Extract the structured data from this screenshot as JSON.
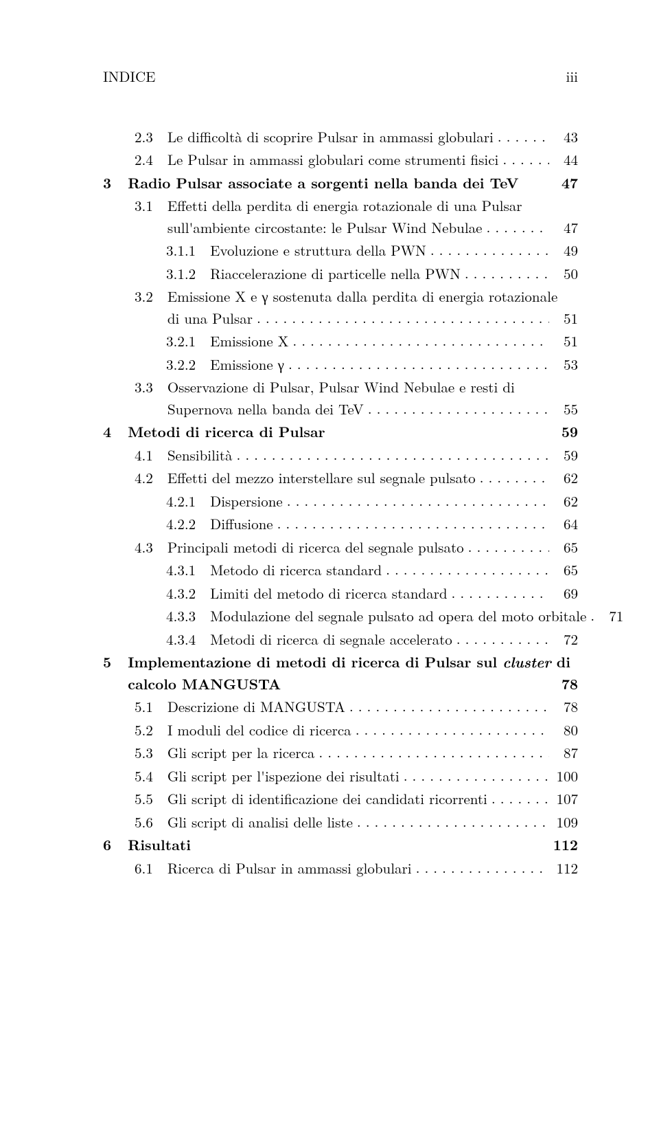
{
  "header": {
    "left": "INDICE",
    "right": "iii"
  },
  "entries": [
    {
      "level": 1,
      "num": "2.3",
      "title": "Le difficoltà di scoprire Pulsar in ammassi globulari",
      "page": "43"
    },
    {
      "level": 1,
      "num": "2.4",
      "title": "Le Pulsar in ammassi globulari come strumenti fisici",
      "page": "44"
    },
    {
      "level": 0,
      "num": "3",
      "title": "Radio Pulsar associate a sorgenti nella banda dei TeV",
      "page": "47",
      "gap": true
    },
    {
      "level": 1,
      "num": "3.1",
      "title": "Effetti della perdita di energia rotazionale di una Pulsar"
    },
    {
      "level": 1,
      "num": "3.1",
      "cont": true,
      "title": "sull'ambiente circostante: le Pulsar Wind Nebulae",
      "page": "47"
    },
    {
      "level": 2,
      "num": "3.1.1",
      "title": "Evoluzione e struttura della PWN",
      "page": "49"
    },
    {
      "level": 2,
      "num": "3.1.2",
      "title": "Riaccelerazione di particelle nella PWN",
      "page": "50"
    },
    {
      "level": 1,
      "num": "3.2",
      "title": "Emissione X e γ sostenuta dalla perdita di energia rotazionale"
    },
    {
      "level": 1,
      "num": "3.2",
      "cont": true,
      "title": "di una Pulsar",
      "page": "51"
    },
    {
      "level": 2,
      "num": "3.2.1",
      "title": "Emissione X",
      "page": "51"
    },
    {
      "level": 2,
      "num": "3.2.2",
      "title": "Emissione γ",
      "page": "53"
    },
    {
      "level": 1,
      "num": "3.3",
      "title": "Osservazione di Pulsar, Pulsar Wind Nebulae e resti di"
    },
    {
      "level": 1,
      "num": "3.3",
      "cont": true,
      "title": "Supernova nella banda dei TeV",
      "page": "55"
    },
    {
      "level": 0,
      "num": "4",
      "title": "Metodi di ricerca di Pulsar",
      "page": "59",
      "gap": true
    },
    {
      "level": 1,
      "num": "4.1",
      "title": "Sensibilità",
      "page": "59"
    },
    {
      "level": 1,
      "num": "4.2",
      "title": "Effetti del mezzo interstellare sul segnale pulsato",
      "page": "62"
    },
    {
      "level": 2,
      "num": "4.2.1",
      "title": "Dispersione",
      "page": "62"
    },
    {
      "level": 2,
      "num": "4.2.2",
      "title": "Diffusione",
      "page": "64"
    },
    {
      "level": 1,
      "num": "4.3",
      "title": "Principali metodi di ricerca del segnale pulsato",
      "page": "65"
    },
    {
      "level": 2,
      "num": "4.3.1",
      "title": "Metodo di ricerca standard",
      "page": "65"
    },
    {
      "level": 2,
      "num": "4.3.2",
      "title": "Limiti del metodo di ricerca standard",
      "page": "69"
    },
    {
      "level": 2,
      "num": "4.3.3",
      "title": "Modulazione del segnale pulsato ad opera del moto orbitale",
      "page": "71"
    },
    {
      "level": 2,
      "num": "4.3.4",
      "title": "Metodi di ricerca di segnale accelerato",
      "page": "72"
    },
    {
      "level": 0,
      "num": "5",
      "title_html": "Implementazione di metodi di ricerca di Pulsar sul <span class='it'>cluster</span> di",
      "gap": true
    },
    {
      "level": 0,
      "num": "5",
      "cont": true,
      "title": "calcolo MANGUSTA",
      "page": "78"
    },
    {
      "level": 1,
      "num": "5.1",
      "title": "Descrizione di MANGUSTA",
      "page": "78"
    },
    {
      "level": 1,
      "num": "5.2",
      "title": "I moduli del codice di ricerca",
      "page": "80"
    },
    {
      "level": 1,
      "num": "5.3",
      "title": "Gli script per la ricerca",
      "page": "87"
    },
    {
      "level": 1,
      "num": "5.4",
      "title": "Gli script per l'ispezione dei risultati",
      "page": "100"
    },
    {
      "level": 1,
      "num": "5.5",
      "title": "Gli script di identificazione dei candidati ricorrenti",
      "page": "107"
    },
    {
      "level": 1,
      "num": "5.6",
      "title": "Gli script di analisi delle liste",
      "page": "109"
    },
    {
      "level": 0,
      "num": "6",
      "title": "Risultati",
      "page": "112",
      "gap": true
    },
    {
      "level": 1,
      "num": "6.1",
      "title": "Ricerca di Pulsar in ammassi globulari",
      "page": "112"
    }
  ]
}
